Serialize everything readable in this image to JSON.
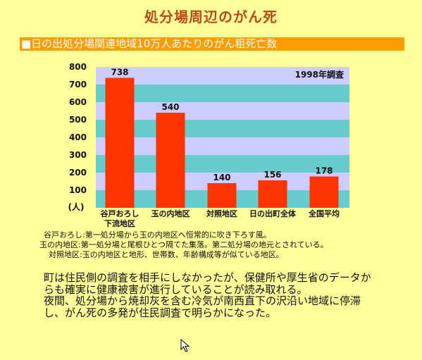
{
  "page": {
    "title": "処分場周辺のがん死",
    "banner": "■日の出処分場関連地域10万人あたりのがん粗死亡数"
  },
  "chart_data": {
    "type": "bar",
    "categories": [
      "谷戸おろし\n下流地区",
      "玉の内地区",
      "対照地区",
      "日の出町全体",
      "全国平均"
    ],
    "values": [
      738,
      540,
      140,
      156,
      178
    ],
    "annotation": "1998年調査",
    "ylabel": "(人)",
    "ylim": [
      0,
      800
    ],
    "yticks": [
      100,
      200,
      300,
      400,
      500,
      600,
      700,
      800
    ],
    "bar_color": "#ff3300",
    "band_colors": [
      "#66cccc",
      "#ccccff"
    ],
    "grid": false
  },
  "notes": [
    {
      "term": "谷戸おろし:",
      "text": "第一処分場から玉の内地区へ恒常的に吹き下ろす風。"
    },
    {
      "term": "玉の内地区:",
      "text": "第一処分場と尾根ひとつ隔てた集落。第二処分場の地元とされている。"
    },
    {
      "term": "対照地区:",
      "text": "玉の内地区と地形、世帯数、年齢構成等が似ている地区。"
    }
  ],
  "paragraphs": [
    "町は住民側の調査を相手にしなかったが、保健所や厚生省のデータからも確実に健康被害が進行していることが読み取れる。",
    "夜間、処分場から焼却灰を含む冷気が南西直下の沢沿い地域に停滞し、がん死の多発が住民調査で明らかになった。"
  ]
}
